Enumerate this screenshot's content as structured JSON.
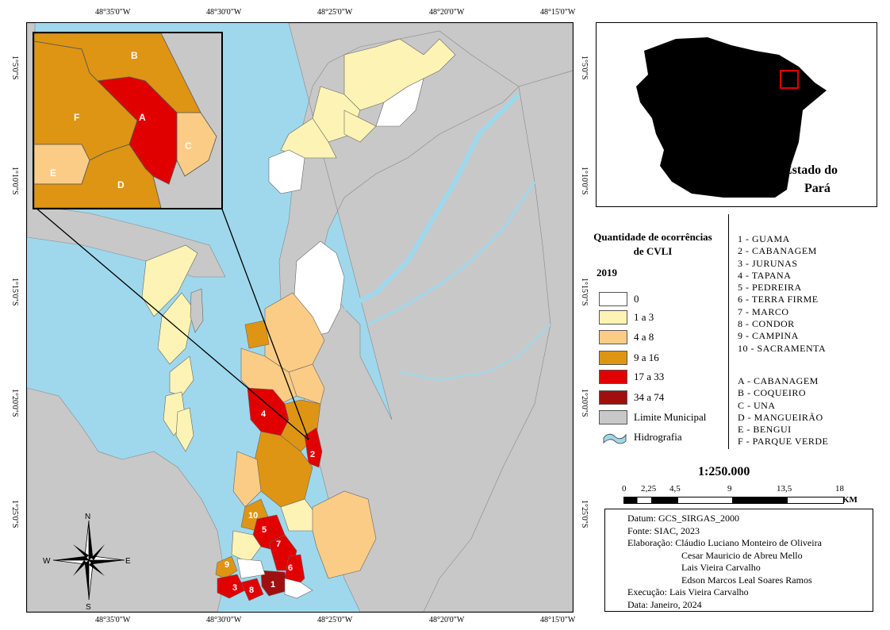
{
  "coordinates": {
    "top": [
      "48°35'0\"W",
      "48°30'0\"W",
      "48°25'0\"W",
      "48°20'0\"W",
      "48°15'0\"W"
    ],
    "bottom": [
      "48°35'0\"W",
      "48°30'0\"W",
      "48°25'0\"W",
      "48°20'0\"W",
      "48°15'0\"W"
    ],
    "left": [
      "1°5'0\"S",
      "1°10'0\"S",
      "1°15'0\"S",
      "1°20'0\"S",
      "1°25'0\"S"
    ],
    "right": [
      "1°5'0\"S",
      "1°10'0\"S",
      "1°15'0\"S",
      "1°20'0\"S",
      "1°25'0\"S"
    ]
  },
  "colors": {
    "water": "#9fd8ec",
    "municipal_limit": "#c8c8c8",
    "class_0": "#ffffff",
    "class_1_3": "#fdf3b4",
    "class_4_8": "#fbcc85",
    "class_9_16": "#de9514",
    "class_17_33": "#e00000",
    "class_34_74": "#a00f0f"
  },
  "inset_labels": [
    "A",
    "B",
    "C",
    "D",
    "E",
    "F"
  ],
  "map_labels": [
    "1",
    "2",
    "3",
    "4",
    "5",
    "6",
    "7",
    "8",
    "9",
    "10"
  ],
  "locator": {
    "state_label_line1": "Estado do",
    "state_label_line2": "Pará"
  },
  "legend": {
    "title_line1": "Quantidade de ocorrências",
    "title_line2": "de CVLI",
    "year": "2019",
    "items": [
      {
        "label": "0",
        "color": "#ffffff"
      },
      {
        "label": "1 a 3",
        "color": "#fdf3b4"
      },
      {
        "label": "4 a 8",
        "color": "#fbcc85"
      },
      {
        "label": "9 a 16",
        "color": "#de9514"
      },
      {
        "label": "17 a 33",
        "color": "#e00000"
      },
      {
        "label": "34 a 74",
        "color": "#a00f0f"
      },
      {
        "label": "Limite Municipal",
        "color": "#c8c8c8"
      }
    ],
    "hydro_label": "Hidrografia"
  },
  "neighborhoods": [
    "1 - GUAMA",
    "2 - CABANAGEM",
    "3 - JURUNAS",
    "4 - TAPANA",
    "5 - PEDREIRA",
    "6 - TERRA FIRME",
    "7 - MARCO",
    "8 - CONDOR",
    "9 - CAMPINA",
    "10 - SACRAMENTA"
  ],
  "inset_neighborhoods": [
    "A - CABANAGEM",
    "B - COQUEIRO",
    "C - UNA",
    "D - MANGUEIRÃO",
    "E - BENGUI",
    "F - PARQUE VERDE"
  ],
  "scale": {
    "ratio": "1:250.000",
    "ticks": [
      "0",
      "2,25",
      "4,5",
      "9",
      "13,5",
      "18"
    ],
    "unit": "KM"
  },
  "north_arrow": {
    "n": "N",
    "s": "S",
    "e": "E",
    "w": "W"
  },
  "credits": {
    "datum": "Datum: GCS_SIRGAS_2000",
    "source": "Fonte: SIAC, 2023",
    "elaboration_label": "Elaboração: Cláudio Luciano Monteiro de Oliveira",
    "author2": "Cesar Mauricio de Abreu Mello",
    "author3": "Lais Vieira Carvalho",
    "author4": "Edson Marcos Leal Soares Ramos",
    "execution": "Execução: Lais Vieira Carvalho",
    "date": "Data: Janeiro, 2024"
  }
}
